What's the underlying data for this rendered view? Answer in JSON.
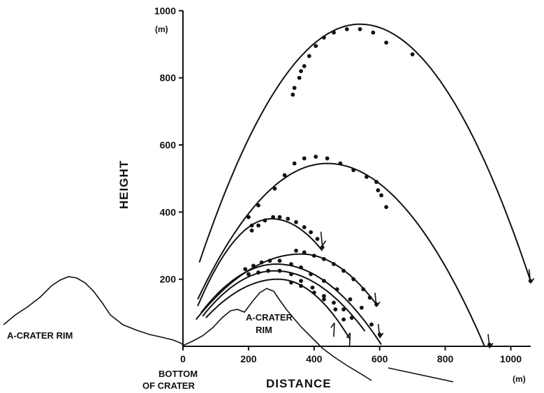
{
  "chart_data": {
    "type": "scatter",
    "title": "",
    "xlabel": "DISTANCE",
    "ylabel": "HEIGHT",
    "x_unit": "(m)",
    "y_unit": "(m)",
    "xlim": [
      0,
      1050
    ],
    "ylim": [
      0,
      1000
    ],
    "x_ticks": [
      0,
      200,
      400,
      600,
      800,
      1000
    ],
    "y_ticks": [
      200,
      400,
      600,
      800,
      1000
    ],
    "grid": false,
    "annotations": {
      "left_rim": "A-CRATER RIM",
      "center_rim_line1": "A-CRATER",
      "center_rim_line2": "RIM",
      "bottom_line1": "BOTTOM",
      "bottom_line2": "OF CRATER"
    },
    "series": [
      {
        "fit_curve": {
          "x0": 50,
          "x1": 1060,
          "peak_x": 540,
          "peak_y": 960,
          "start_y": 250,
          "end_y": 195
        },
        "points": [
          [
            335,
            750
          ],
          [
            340,
            770
          ],
          [
            355,
            800
          ],
          [
            360,
            820
          ],
          [
            370,
            835
          ],
          [
            385,
            865
          ],
          [
            405,
            895
          ],
          [
            430,
            920
          ],
          [
            460,
            935
          ],
          [
            500,
            945
          ],
          [
            540,
            945
          ],
          [
            580,
            935
          ],
          [
            620,
            905
          ],
          [
            700,
            870
          ],
          [
            1060,
            195
          ]
        ]
      },
      {
        "fit_curve": {
          "x0": 45,
          "x1": 920,
          "peak_x": 440,
          "peak_y": 545,
          "start_y": 140,
          "end_y": 0
        },
        "points": [
          [
            200,
            385
          ],
          [
            210,
            360
          ],
          [
            230,
            420
          ],
          [
            280,
            470
          ],
          [
            310,
            510
          ],
          [
            340,
            545
          ],
          [
            370,
            560
          ],
          [
            405,
            565
          ],
          [
            440,
            560
          ],
          [
            480,
            545
          ],
          [
            520,
            525
          ],
          [
            560,
            505
          ],
          [
            590,
            490
          ],
          [
            595,
            465
          ],
          [
            605,
            450
          ],
          [
            620,
            415
          ],
          [
            935,
            5
          ]
        ]
      },
      {
        "fit_curve": {
          "x0": 45,
          "x1": 425,
          "peak_x": 270,
          "peak_y": 380,
          "start_y": 120,
          "end_y": 285
        },
        "points": [
          [
            210,
            345
          ],
          [
            230,
            360
          ],
          [
            250,
            375
          ],
          [
            275,
            385
          ],
          [
            295,
            385
          ],
          [
            320,
            380
          ],
          [
            345,
            370
          ],
          [
            370,
            355
          ],
          [
            390,
            340
          ],
          [
            410,
            320
          ],
          [
            425,
            295
          ]
        ]
      },
      {
        "fit_curve": {
          "x0": 40,
          "x1": 590,
          "peak_x": 360,
          "peak_y": 275,
          "start_y": 80,
          "end_y": 125
        },
        "points": [
          [
            345,
            285
          ],
          [
            370,
            280
          ],
          [
            400,
            270
          ],
          [
            430,
            260
          ],
          [
            460,
            245
          ],
          [
            490,
            225
          ],
          [
            520,
            200
          ],
          [
            550,
            170
          ],
          [
            570,
            145
          ],
          [
            590,
            125
          ]
        ]
      },
      {
        "fit_curve": {
          "x0": 55,
          "x1": 605,
          "peak_x": 285,
          "peak_y": 245,
          "start_y": 100,
          "end_y": 5
        },
        "points": [
          [
            190,
            230
          ],
          [
            215,
            240
          ],
          [
            240,
            250
          ],
          [
            265,
            255
          ],
          [
            295,
            255
          ],
          [
            330,
            245
          ],
          [
            360,
            235
          ],
          [
            390,
            215
          ],
          [
            430,
            195
          ],
          [
            470,
            170
          ],
          [
            510,
            140
          ],
          [
            545,
            115
          ],
          [
            575,
            65
          ],
          [
            600,
            35
          ]
        ]
      },
      {
        "fit_curve": {
          "x0": 60,
          "x1": 555,
          "peak_x": 280,
          "peak_y": 225,
          "start_y": 90,
          "end_y": 45
        },
        "points": [
          [
            200,
            215
          ],
          [
            230,
            220
          ],
          [
            260,
            225
          ],
          [
            295,
            225
          ],
          [
            330,
            215
          ],
          [
            360,
            195
          ],
          [
            395,
            175
          ],
          [
            430,
            150
          ],
          [
            460,
            130
          ],
          [
            490,
            110
          ],
          [
            515,
            85
          ]
        ]
      },
      {
        "fit_curve": {
          "x0": 70,
          "x1": 510,
          "peak_x": 290,
          "peak_y": 200,
          "start_y": 85,
          "end_y": 20
        },
        "points": [
          [
            330,
            190
          ],
          [
            360,
            180
          ],
          [
            400,
            160
          ],
          [
            430,
            140
          ],
          [
            465,
            110
          ],
          [
            490,
            80
          ]
        ]
      }
    ],
    "impact_arrows_down": [
      [
        425,
        300
      ],
      [
        590,
        118
      ],
      [
        600,
        25
      ],
      [
        935,
        -5
      ],
      [
        1060,
        188
      ]
    ],
    "impact_arrows_up": [
      [
        462,
        70
      ],
      [
        510,
        40
      ]
    ]
  }
}
